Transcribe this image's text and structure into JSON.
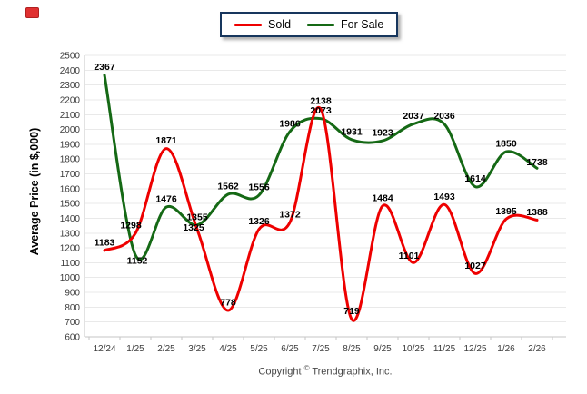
{
  "icons": {
    "corner_mark": "red-rectangle-mark"
  },
  "legend": {
    "position": "top-center"
  },
  "chart_data": {
    "type": "line",
    "title": "",
    "xlabel": "",
    "ylabel": "Average Price (in $,000)",
    "categories": [
      "12/24",
      "1/25",
      "2/25",
      "3/25",
      "4/25",
      "5/25",
      "6/25",
      "7/25",
      "8/25",
      "9/25",
      "10/25",
      "11/25",
      "12/25",
      "1/26",
      "2/26"
    ],
    "series": [
      {
        "name": "Sold",
        "color": "#ee0000",
        "values": [
          1183,
          1298,
          1871,
          1325,
          778,
          1326,
          1372,
          2138,
          719,
          1484,
          1101,
          1493,
          1027,
          1395,
          1388
        ]
      },
      {
        "name": "For Sale",
        "color": "#156915",
        "values": [
          2367,
          1152,
          1476,
          1355,
          1562,
          1556,
          1986,
          2073,
          1931,
          1923,
          2037,
          2036,
          1614,
          1850,
          1738
        ]
      }
    ],
    "ylim": [
      600,
      2500
    ],
    "ytick_step": 100,
    "grid": "horizontal",
    "legend_position": "top-center",
    "label_nudges": {
      "Sold": {
        "1": [
          -5,
          0
        ],
        "3": [
          -4,
          7
        ],
        "10": [
          -5,
          1
        ]
      },
      "For Sale": {
        "1": [
          2,
          15
        ],
        "14": [
          0,
          2
        ]
      }
    }
  },
  "footer": {
    "prefix": "Copyright",
    "symbol": "©",
    "suffix": "Trendgraphix, Inc."
  }
}
